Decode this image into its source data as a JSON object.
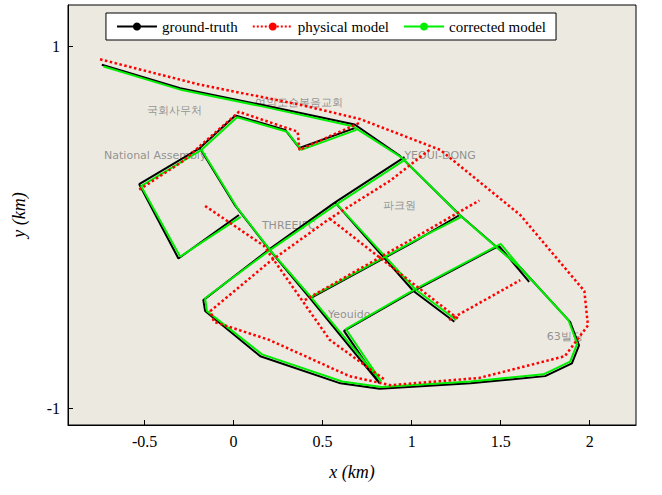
{
  "chart_data": {
    "type": "line",
    "xlabel": "x (km)",
    "ylabel": "y (km)",
    "xlim": [
      -0.93,
      2.26
    ],
    "ylim": [
      -1.09,
      1.23
    ],
    "xticks": [
      -0.5,
      0,
      0.5,
      1,
      1.5,
      2
    ],
    "yticks": [
      -1,
      1
    ],
    "grid": false,
    "legend": "top",
    "series": [
      {
        "name": "ground-truth",
        "color": "#000000",
        "line_style": "solid",
        "values": [
          [
            -0.74,
            0.9
          ],
          [
            -0.3,
            0.77
          ],
          [
            0.15,
            0.68
          ],
          [
            0.68,
            0.57
          ],
          [
            0.93,
            0.4
          ],
          [
            1.27,
            0.07
          ],
          [
            1.61,
            -0.22
          ],
          [
            1.89,
            -0.52
          ],
          [
            1.94,
            -0.65
          ],
          [
            1.9,
            -0.75
          ],
          [
            1.75,
            -0.82
          ],
          [
            1.33,
            -0.86
          ],
          [
            0.82,
            -0.89
          ],
          [
            0.6,
            -0.86
          ],
          [
            0.15,
            -0.71
          ],
          [
            -0.16,
            -0.46
          ],
          [
            -0.17,
            -0.4
          ],
          [
            0.2,
            -0.12
          ],
          [
            0.57,
            0.14
          ],
          [
            0.96,
            0.39
          ],
          null,
          [
            -0.19,
            0.44
          ],
          [
            0.01,
            0.62
          ],
          [
            0.29,
            0.54
          ],
          [
            0.37,
            0.44
          ],
          [
            0.68,
            0.55
          ],
          null,
          [
            -0.19,
            0.44
          ],
          [
            0.01,
            0.12
          ],
          [
            0.2,
            -0.12
          ],
          [
            0.43,
            -0.39
          ],
          [
            0.82,
            -0.86
          ],
          null,
          [
            -0.19,
            0.44
          ],
          [
            -0.53,
            0.24
          ],
          [
            -0.31,
            -0.17
          ],
          [
            0.03,
            0.07
          ],
          null,
          [
            0.43,
            -0.39
          ],
          [
            1.01,
            -0.08
          ],
          [
            1.27,
            0.07
          ],
          null,
          [
            0.57,
            0.14
          ],
          [
            1.01,
            -0.35
          ],
          [
            1.24,
            -0.52
          ],
          null,
          [
            1.01,
            -0.35
          ],
          [
            1.49,
            -0.1
          ],
          [
            1.66,
            -0.3
          ],
          null,
          [
            0.82,
            -0.86
          ],
          [
            0.62,
            -0.57
          ],
          [
            1.01,
            -0.35
          ]
        ]
      },
      {
        "name": "physical model",
        "color": "#ff0000",
        "line_style": "dotted",
        "values": [
          [
            -0.75,
            0.93
          ],
          [
            -0.19,
            0.79
          ],
          [
            0.37,
            0.68
          ],
          [
            0.71,
            0.6
          ],
          [
            1.16,
            0.43
          ],
          [
            1.61,
            0.07
          ],
          [
            1.97,
            -0.35
          ],
          [
            1.99,
            -0.54
          ],
          [
            1.86,
            -0.71
          ],
          [
            1.38,
            -0.83
          ],
          [
            0.88,
            -0.87
          ],
          [
            0.65,
            -0.82
          ],
          [
            0.2,
            -0.62
          ],
          [
            -0.11,
            -0.52
          ],
          [
            -0.13,
            -0.46
          ],
          [
            0.2,
            -0.19
          ],
          [
            0.54,
            0.05
          ],
          [
            0.88,
            0.26
          ],
          [
            1.1,
            0.43
          ],
          null,
          [
            -0.19,
            0.45
          ],
          [
            0.03,
            0.64
          ],
          [
            0.36,
            0.53
          ],
          [
            0.37,
            0.43
          ],
          [
            0.71,
            0.58
          ],
          null,
          [
            -0.53,
            0.21
          ],
          [
            -0.28,
            0.37
          ],
          [
            -0.19,
            0.45
          ],
          null,
          [
            -0.16,
            0.12
          ],
          [
            0.17,
            -0.1
          ],
          [
            0.54,
            -0.62
          ],
          [
            0.85,
            -0.84
          ],
          null,
          [
            0.54,
            0.05
          ],
          [
            1.27,
            -0.51
          ],
          null,
          [
            0.4,
            -0.4
          ],
          [
            0.99,
            -0.07
          ],
          [
            1.38,
            0.15
          ],
          null,
          [
            1.21,
            -0.51
          ],
          [
            1.61,
            -0.29
          ]
        ]
      },
      {
        "name": "corrected model",
        "color": "#00ee00",
        "line_style": "solid",
        "values": [
          [
            -0.73,
            0.89
          ],
          [
            -0.29,
            0.76
          ],
          [
            0.16,
            0.67
          ],
          [
            0.67,
            0.56
          ],
          [
            0.94,
            0.39
          ],
          [
            1.28,
            0.06
          ],
          [
            1.62,
            -0.23
          ],
          [
            1.88,
            -0.51
          ],
          [
            1.93,
            -0.64
          ],
          [
            1.89,
            -0.74
          ],
          [
            1.74,
            -0.81
          ],
          [
            1.33,
            -0.85
          ],
          [
            0.83,
            -0.88
          ],
          [
            0.61,
            -0.85
          ],
          [
            0.16,
            -0.7
          ],
          [
            -0.15,
            -0.46
          ],
          [
            -0.16,
            -0.39
          ],
          [
            0.21,
            -0.12
          ],
          [
            0.58,
            0.13
          ],
          [
            0.97,
            0.38
          ],
          null,
          [
            -0.18,
            0.43
          ],
          [
            0.02,
            0.61
          ],
          [
            0.3,
            0.53
          ],
          [
            0.38,
            0.43
          ],
          [
            0.69,
            0.54
          ],
          null,
          [
            -0.18,
            0.43
          ],
          [
            0.02,
            0.11
          ],
          [
            0.21,
            -0.13
          ],
          [
            0.44,
            -0.39
          ],
          [
            0.83,
            -0.85
          ],
          null,
          [
            -0.18,
            0.43
          ],
          [
            -0.52,
            0.23
          ],
          [
            -0.3,
            -0.16
          ],
          [
            0.04,
            0.06
          ],
          null,
          [
            0.44,
            -0.38
          ],
          [
            1.02,
            -0.07
          ],
          [
            1.28,
            0.06
          ],
          null,
          [
            0.58,
            0.13
          ],
          [
            1.02,
            -0.34
          ],
          [
            1.25,
            -0.51
          ],
          null,
          [
            1.02,
            -0.34
          ],
          [
            1.5,
            -0.09
          ],
          [
            1.67,
            -0.29
          ],
          null,
          [
            0.83,
            -0.85
          ],
          [
            0.63,
            -0.56
          ],
          [
            1.02,
            -0.34
          ]
        ]
      }
    ],
    "annotations": [
      {
        "text": "국회사무처",
        "x": -0.33,
        "y": 0.65
      },
      {
        "text": "여의도순복음교회",
        "x": 0.37,
        "y": 0.69
      },
      {
        "text": "National Assembly",
        "x": -0.44,
        "y": 0.4
      },
      {
        "text": "파크원",
        "x": 0.93,
        "y": 0.12
      },
      {
        "text": "THREEIFC",
        "x": 0.31,
        "y": 0.01
      },
      {
        "text": "YEOUI-DONG",
        "x": 1.16,
        "y": 0.4
      },
      {
        "text": "Yeouido",
        "x": 0.65,
        "y": -0.48
      },
      {
        "text": "63빌딩",
        "x": 1.86,
        "y": -0.6
      }
    ]
  }
}
